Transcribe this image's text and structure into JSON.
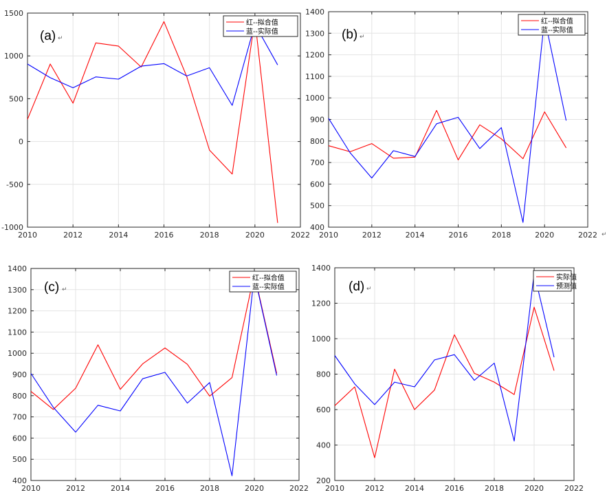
{
  "colors": {
    "red": "#ff0000",
    "blue": "#0000ff",
    "grid": "#e3e3e3",
    "axis": "#262626"
  },
  "return_mark": "↵",
  "chart_data": [
    {
      "type": "line",
      "panel_label": "(a)",
      "x": [
        2010,
        2011,
        2012,
        2013,
        2014,
        2015,
        2016,
        2017,
        2018,
        2019,
        2020,
        2021
      ],
      "xlim": [
        2010,
        2022
      ],
      "xticks": [
        2010,
        2012,
        2014,
        2016,
        2018,
        2020,
        2022
      ],
      "ylim": [
        -1000,
        1500
      ],
      "yticks": [
        -1000,
        -500,
        0,
        500,
        1000,
        1500
      ],
      "legend_position": "top-right",
      "series": [
        {
          "name": "红--拟合值",
          "color": "red",
          "values": [
            260,
            905,
            448,
            1152,
            1115,
            870,
            1400,
            760,
            -100,
            -380,
            1425,
            -950
          ]
        },
        {
          "name": "蓝--实际值",
          "color": "blue",
          "values": [
            905,
            745,
            628,
            755,
            728,
            880,
            910,
            765,
            862,
            422,
            1370,
            895
          ]
        }
      ]
    },
    {
      "type": "line",
      "panel_label": "(b)",
      "x": [
        2010,
        2011,
        2012,
        2013,
        2014,
        2015,
        2016,
        2017,
        2018,
        2019,
        2020,
        2021
      ],
      "xlim": [
        2010,
        2022
      ],
      "xticks": [
        2010,
        2012,
        2014,
        2016,
        2018,
        2020,
        2022
      ],
      "ylim": [
        400,
        1400
      ],
      "yticks": [
        400,
        500,
        600,
        700,
        800,
        900,
        1000,
        1100,
        1200,
        1300,
        1400
      ],
      "legend_position": "top-right",
      "series": [
        {
          "name": "红--拟合值",
          "color": "red",
          "values": [
            778,
            750,
            788,
            720,
            725,
            942,
            712,
            875,
            810,
            718,
            935,
            768
          ]
        },
        {
          "name": "蓝--实际值",
          "color": "blue",
          "values": [
            905,
            745,
            628,
            755,
            728,
            880,
            910,
            765,
            862,
            422,
            1370,
            895
          ]
        }
      ]
    },
    {
      "type": "line",
      "panel_label": "(c)",
      "x": [
        2010,
        2011,
        2012,
        2013,
        2014,
        2015,
        2016,
        2017,
        2018,
        2019,
        2020,
        2021
      ],
      "xlim": [
        2010,
        2022
      ],
      "xticks": [
        2010,
        2012,
        2014,
        2016,
        2018,
        2020,
        2022
      ],
      "ylim": [
        400,
        1400
      ],
      "yticks": [
        400,
        500,
        600,
        700,
        800,
        900,
        1000,
        1100,
        1200,
        1300,
        1400
      ],
      "legend_position": "top-right",
      "series": [
        {
          "name": "红--拟合值",
          "color": "red",
          "values": [
            820,
            735,
            835,
            1040,
            830,
            950,
            1025,
            948,
            798,
            885,
            1375,
            905
          ]
        },
        {
          "name": "蓝--实际值",
          "color": "blue",
          "values": [
            905,
            745,
            628,
            755,
            728,
            880,
            910,
            765,
            862,
            422,
            1370,
            895
          ]
        }
      ]
    },
    {
      "type": "line",
      "panel_label": "(d)",
      "x": [
        2010,
        2011,
        2012,
        2013,
        2014,
        2015,
        2016,
        2017,
        2018,
        2019,
        2020,
        2021
      ],
      "xlim": [
        2010,
        2022
      ],
      "xticks": [
        2010,
        2012,
        2014,
        2016,
        2018,
        2020,
        2022
      ],
      "ylim": [
        200,
        1400
      ],
      "yticks": [
        200,
        400,
        600,
        800,
        1000,
        1200,
        1400
      ],
      "legend_position": "top-right",
      "series": [
        {
          "name": "实际值",
          "color": "red",
          "values": [
            622,
            728,
            328,
            828,
            600,
            710,
            1022,
            805,
            755,
            685,
            1178,
            820
          ]
        },
        {
          "name": "预测值",
          "color": "blue",
          "values": [
            905,
            745,
            628,
            755,
            728,
            880,
            910,
            765,
            862,
            422,
            1370,
            895
          ]
        }
      ]
    }
  ]
}
